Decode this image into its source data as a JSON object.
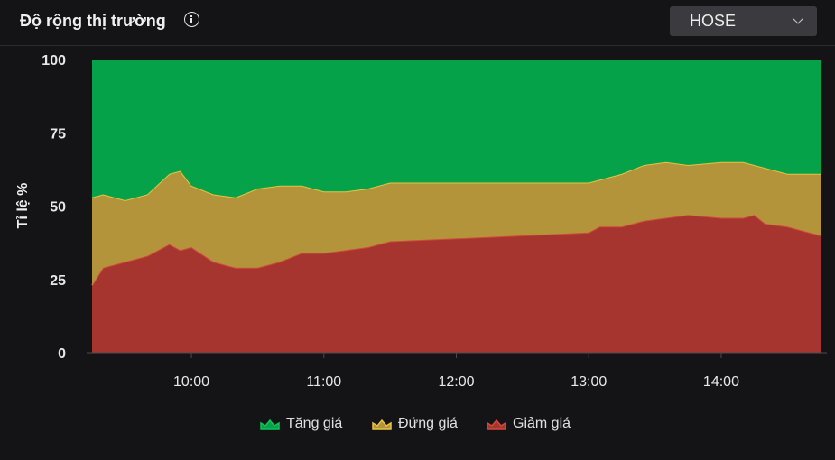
{
  "header": {
    "title": "Độ rộng thị trường",
    "info_icon": "info-circle-icon",
    "exchange": "HOSE",
    "chevron_icon": "chevron-down-icon"
  },
  "chart_data": {
    "type": "area",
    "stacked": true,
    "ylabel": "Tỉ lệ %",
    "ylim": [
      0,
      100
    ],
    "yticks": [
      "0",
      "25",
      "50",
      "75",
      "100"
    ],
    "xticks": [
      "10:00",
      "11:00",
      "12:00",
      "13:00",
      "14:00"
    ],
    "xlim": [
      "09:15",
      "14:45"
    ],
    "x": [
      "09:15",
      "09:20",
      "09:30",
      "09:40",
      "09:50",
      "09:55",
      "10:00",
      "10:10",
      "10:20",
      "10:30",
      "10:40",
      "10:50",
      "11:00",
      "11:10",
      "11:20",
      "11:30",
      "12:00",
      "12:30",
      "13:00",
      "13:05",
      "13:15",
      "13:25",
      "13:35",
      "13:45",
      "14:00",
      "14:10",
      "14:15",
      "14:20",
      "14:30",
      "14:45"
    ],
    "series": [
      {
        "name": "Giảm giá",
        "color": "#a63530",
        "line": "#d04a3c",
        "values": [
          23,
          29,
          31,
          33,
          37,
          35,
          36,
          31,
          29,
          29,
          31,
          34,
          34,
          35,
          36,
          38,
          39,
          40,
          41,
          43,
          43,
          45,
          46,
          47,
          46,
          46,
          47,
          44,
          43,
          40
        ]
      },
      {
        "name": "Đứng giá",
        "color": "#b4943a",
        "line": "#e6c342",
        "values": [
          30,
          25,
          21,
          21,
          24,
          27,
          21,
          23,
          24,
          27,
          26,
          23,
          21,
          20,
          20,
          20,
          19,
          18,
          17,
          16,
          18,
          19,
          19,
          17,
          19,
          19,
          17,
          19,
          18,
          21
        ]
      },
      {
        "name": "Tăng giá",
        "color": "#05a24a",
        "line": "#10c257",
        "values": [
          47,
          46,
          48,
          46,
          39,
          38,
          43,
          46,
          47,
          44,
          43,
          43,
          45,
          45,
          44,
          42,
          42,
          42,
          42,
          41,
          39,
          36,
          35,
          36,
          35,
          35,
          36,
          37,
          39,
          39
        ]
      }
    ],
    "grid": false,
    "legend": "bottom"
  }
}
